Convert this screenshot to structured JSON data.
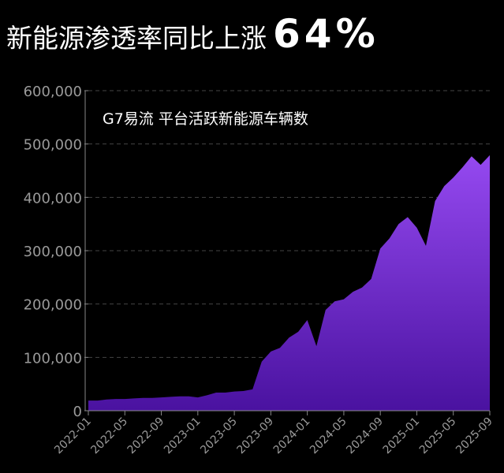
{
  "header": {
    "title": "新能源渗透率同比上涨",
    "highlight": "64%"
  },
  "chart_data": {
    "type": "area",
    "title": "G7易流 平台活跃新能源车辆数",
    "xlabel": "",
    "ylabel": "",
    "ylim": [
      0,
      600000
    ],
    "yticks": [
      0,
      100000,
      200000,
      300000,
      400000,
      500000,
      600000
    ],
    "ytick_labels": [
      "0",
      "100,000",
      "200,000",
      "300,000",
      "400,000",
      "500,000",
      "600,000"
    ],
    "xtick_labels": [
      "2022-01",
      "2022-05",
      "2022-09",
      "2023-01",
      "2023-05",
      "2023-09",
      "2024-01",
      "2024-05",
      "2024-09",
      "2025-01",
      "2025-05",
      "2025-09"
    ],
    "grid": "horizontal dashed",
    "colors": {
      "area_top": "#9549f0",
      "area_bottom": "#4a12a0",
      "grid": "#444444",
      "axis": "#888888"
    },
    "x": [
      "2022-01",
      "2022-02",
      "2022-03",
      "2022-04",
      "2022-05",
      "2022-06",
      "2022-07",
      "2022-08",
      "2022-09",
      "2022-10",
      "2022-11",
      "2022-12",
      "2023-01",
      "2023-02",
      "2023-03",
      "2023-04",
      "2023-05",
      "2023-06",
      "2023-07",
      "2023-08",
      "2023-09",
      "2023-10",
      "2023-11",
      "2023-12",
      "2024-01",
      "2024-02",
      "2024-03",
      "2024-04",
      "2024-05",
      "2024-06",
      "2024-07",
      "2024-08",
      "2024-09",
      "2024-10",
      "2024-11",
      "2024-12",
      "2025-01",
      "2025-02",
      "2025-03",
      "2025-04",
      "2025-05",
      "2025-06",
      "2025-07",
      "2025-08",
      "2025-09"
    ],
    "values": [
      19000,
      19000,
      21000,
      22000,
      22000,
      23000,
      24000,
      24000,
      25000,
      26000,
      27000,
      27000,
      25000,
      29000,
      34000,
      34000,
      36000,
      37000,
      40000,
      92000,
      111000,
      118000,
      137000,
      148000,
      170000,
      121000,
      189000,
      205000,
      209000,
      223000,
      231000,
      247000,
      304000,
      323000,
      350000,
      363000,
      343000,
      309000,
      393000,
      421000,
      437000,
      456000,
      477000,
      461000,
      479000
    ]
  }
}
